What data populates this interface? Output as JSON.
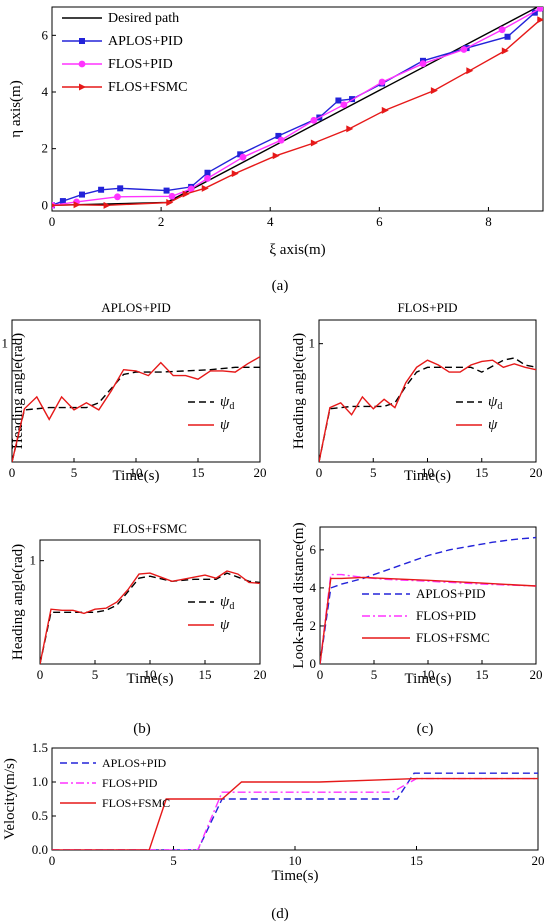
{
  "captions": {
    "a": "(a)",
    "b": "(b)",
    "c": "(c)",
    "d": "(d)"
  },
  "colors": {
    "desired": "#000000",
    "aplos": "#2323d9",
    "flos_pid": "#ff33ff",
    "flos_fsmc": "#e61919"
  },
  "chart_data": [
    {
      "id": "a",
      "type": "line",
      "title": "",
      "xlabel": "ξ axis(m)",
      "ylabel": "η axis(m)",
      "xlim": [
        0,
        9
      ],
      "ylim": [
        -0.2,
        7
      ],
      "xticks": [
        0,
        2,
        4,
        6,
        8
      ],
      "yticks": [
        0,
        2,
        4,
        6
      ],
      "legend_position": "top-left",
      "series": [
        {
          "name": "Desired path",
          "color": "#000000",
          "marker": "none",
          "dash": "solid",
          "x": [
            0,
            2.1,
            8.9
          ],
          "y": [
            0,
            0.1,
            7.0
          ]
        },
        {
          "name": "APLOS+PID",
          "color": "#2323d9",
          "marker": "square",
          "dash": "solid",
          "x": [
            0,
            0.2,
            0.55,
            0.9,
            1.25,
            2.1,
            2.55,
            2.85,
            3.45,
            4.15,
            4.9,
            5.25,
            5.5,
            6.05,
            6.8,
            7.6,
            8.35,
            8.85,
            8.95
          ],
          "y": [
            0,
            0.15,
            0.38,
            0.55,
            0.6,
            0.52,
            0.65,
            1.15,
            1.8,
            2.45,
            3.1,
            3.7,
            3.75,
            4.3,
            5.1,
            5.55,
            5.95,
            6.8,
            6.95
          ]
        },
        {
          "name": "FLOS+PID",
          "color": "#ff33ff",
          "marker": "circle",
          "dash": "solid",
          "x": [
            0,
            0.45,
            1.2,
            2.2,
            2.55,
            2.85,
            3.5,
            4.2,
            4.8,
            5.35,
            6.05,
            6.8,
            7.55,
            8.25,
            8.95
          ],
          "y": [
            0,
            0.12,
            0.3,
            0.32,
            0.58,
            0.95,
            1.7,
            2.3,
            3.0,
            3.55,
            4.35,
            5.0,
            5.5,
            6.2,
            6.95
          ]
        },
        {
          "name": "FLOS+FSMC",
          "color": "#e61919",
          "marker": "triangle-right",
          "dash": "solid",
          "x": [
            0,
            0.45,
            1.0,
            2.15,
            2.45,
            2.8,
            3.35,
            4.1,
            4.8,
            5.45,
            6.1,
            7.0,
            7.65,
            8.3,
            8.95
          ],
          "y": [
            0,
            0.02,
            0.0,
            0.1,
            0.4,
            0.6,
            1.12,
            1.75,
            2.2,
            2.7,
            3.35,
            4.05,
            4.75,
            5.45,
            6.55
          ]
        }
      ]
    },
    {
      "id": "b1",
      "type": "line",
      "title": "APLOS+PID",
      "xlabel": "Time(s)",
      "ylabel": "Heading angle(rad)",
      "xlim": [
        0,
        20
      ],
      "ylim": [
        0,
        1.2
      ],
      "xticks": [
        0,
        5,
        10,
        15,
        20
      ],
      "yticks": [
        1
      ],
      "legend_position": "right",
      "series": [
        {
          "name": "ψd",
          "color": "#000000",
          "dash": "dashed",
          "x": [
            0,
            1,
            3,
            6,
            7,
            8,
            9,
            10,
            12,
            14,
            16,
            18,
            20
          ],
          "y": [
            0,
            0.44,
            0.46,
            0.46,
            0.5,
            0.62,
            0.74,
            0.76,
            0.76,
            0.77,
            0.78,
            0.8,
            0.8
          ]
        },
        {
          "name": "ψ",
          "color": "#e61919",
          "dash": "solid",
          "x": [
            0,
            1,
            2,
            3,
            4,
            5,
            6,
            7,
            8,
            9,
            10,
            11,
            12,
            13,
            14,
            15,
            16,
            17,
            18,
            19,
            20
          ],
          "y": [
            0,
            0.45,
            0.55,
            0.36,
            0.55,
            0.44,
            0.5,
            0.44,
            0.6,
            0.78,
            0.77,
            0.73,
            0.84,
            0.73,
            0.73,
            0.7,
            0.77,
            0.77,
            0.76,
            0.83,
            0.89
          ]
        }
      ]
    },
    {
      "id": "b2",
      "type": "line",
      "title": "FLOS+PID",
      "xlabel": "Time(s)",
      "ylabel": "Heading angle(rad)",
      "xlim": [
        0,
        20
      ],
      "ylim": [
        0,
        1.2
      ],
      "xticks": [
        0,
        5,
        10,
        15,
        20
      ],
      "yticks": [
        1
      ],
      "legend_position": "right",
      "series": [
        {
          "name": "ψd",
          "color": "#000000",
          "dash": "dashed",
          "x": [
            0,
            1,
            3,
            6,
            7,
            8,
            9,
            10,
            12,
            14,
            15,
            16,
            17,
            18,
            19,
            20
          ],
          "y": [
            0,
            0.45,
            0.47,
            0.47,
            0.5,
            0.64,
            0.76,
            0.8,
            0.8,
            0.8,
            0.76,
            0.81,
            0.86,
            0.88,
            0.82,
            0.8
          ]
        },
        {
          "name": "ψ",
          "color": "#e61919",
          "dash": "solid",
          "x": [
            0,
            1,
            2,
            3,
            4,
            5,
            6,
            7,
            8,
            9,
            10,
            11,
            12,
            13,
            14,
            15,
            16,
            17,
            18,
            19,
            20
          ],
          "y": [
            0,
            0.46,
            0.5,
            0.4,
            0.55,
            0.45,
            0.53,
            0.46,
            0.67,
            0.8,
            0.86,
            0.82,
            0.76,
            0.76,
            0.82,
            0.85,
            0.86,
            0.8,
            0.83,
            0.8,
            0.78
          ]
        }
      ]
    },
    {
      "id": "b3",
      "type": "line",
      "title": "FLOS+FSMC",
      "xlabel": "Time(s)",
      "ylabel": "Heading angle(rad)",
      "xlim": [
        0,
        20
      ],
      "ylim": [
        0,
        1.2
      ],
      "xticks": [
        0,
        5,
        10,
        15,
        20
      ],
      "yticks": [
        1
      ],
      "legend_position": "right",
      "series": [
        {
          "name": "ψd",
          "color": "#000000",
          "dash": "dashed",
          "x": [
            0,
            1,
            3,
            5,
            6,
            7,
            8,
            9,
            10,
            12,
            14,
            16,
            17,
            18,
            19,
            20
          ],
          "y": [
            0,
            0.5,
            0.5,
            0.5,
            0.52,
            0.57,
            0.7,
            0.83,
            0.85,
            0.8,
            0.82,
            0.82,
            0.88,
            0.84,
            0.8,
            0.79
          ]
        },
        {
          "name": "ψ",
          "color": "#e61919",
          "dash": "solid",
          "x": [
            0,
            1,
            2,
            3,
            4,
            5,
            6,
            7,
            8,
            9,
            10,
            11,
            12,
            13,
            14,
            15,
            16,
            17,
            18,
            19,
            20
          ],
          "y": [
            0,
            0.53,
            0.52,
            0.52,
            0.49,
            0.53,
            0.54,
            0.6,
            0.72,
            0.87,
            0.88,
            0.84,
            0.8,
            0.82,
            0.84,
            0.86,
            0.83,
            0.9,
            0.87,
            0.79,
            0.78
          ]
        }
      ]
    },
    {
      "id": "c",
      "type": "line",
      "title": "",
      "xlabel": "Time(s)",
      "ylabel": "Look-ahead distance(m)",
      "xlim": [
        0,
        20
      ],
      "ylim": [
        0,
        7.2
      ],
      "xticks": [
        0,
        5,
        10,
        15,
        20
      ],
      "yticks": [
        0,
        2,
        4,
        6
      ],
      "legend_position": "right",
      "series": [
        {
          "name": "APLOS+PID",
          "color": "#2323d9",
          "dash": "dashed",
          "x": [
            0,
            1,
            2,
            4,
            6,
            8,
            10,
            12,
            14,
            16,
            18,
            20
          ],
          "y": [
            0,
            4.0,
            4.2,
            4.5,
            4.9,
            5.3,
            5.7,
            6.0,
            6.2,
            6.4,
            6.55,
            6.65
          ]
        },
        {
          "name": "FLOS+PID",
          "color": "#ff33ff",
          "dash": "dashdot",
          "x": [
            0,
            1,
            2,
            4,
            6,
            10,
            15,
            20
          ],
          "y": [
            0,
            4.7,
            4.7,
            4.55,
            4.45,
            4.35,
            4.2,
            4.1
          ]
        },
        {
          "name": "FLOS+FSMC",
          "color": "#e61919",
          "dash": "solid",
          "x": [
            0,
            1,
            2,
            4,
            6,
            10,
            15,
            20
          ],
          "y": [
            0,
            4.5,
            4.5,
            4.55,
            4.5,
            4.4,
            4.25,
            4.1
          ]
        }
      ]
    },
    {
      "id": "d",
      "type": "line",
      "title": "",
      "xlabel": "Time(s)",
      "ylabel": "Velocity(m/s)",
      "xlim": [
        0,
        20
      ],
      "ylim": [
        0,
        1.5
      ],
      "xticks": [
        0,
        5,
        10,
        15,
        20
      ],
      "yticks": [
        0,
        0.5,
        1.0,
        1.5
      ],
      "ytick_labels": [
        "0.0",
        "0.5",
        "1.0",
        "1.5"
      ],
      "legend_position": "top-left",
      "series": [
        {
          "name": "APLOS+PID",
          "color": "#2323d9",
          "dash": "dashed",
          "x": [
            0,
            6.0,
            7.0,
            14.2,
            14.9,
            20
          ],
          "y": [
            0,
            0,
            0.75,
            0.75,
            1.13,
            1.13
          ]
        },
        {
          "name": "FLOS+PID",
          "color": "#ff33ff",
          "dash": "dashdot",
          "x": [
            0,
            6.0,
            7.0,
            14.0,
            15.0,
            20
          ],
          "y": [
            0,
            0,
            0.85,
            0.85,
            1.05,
            1.05
          ]
        },
        {
          "name": "FLOS+FSMC",
          "color": "#e61919",
          "dash": "solid",
          "x": [
            0,
            4.0,
            4.7,
            7.0,
            7.8,
            11.0,
            15.0,
            20
          ],
          "y": [
            0,
            0,
            0.75,
            0.75,
            1.0,
            1.0,
            1.05,
            1.05
          ]
        }
      ]
    }
  ]
}
